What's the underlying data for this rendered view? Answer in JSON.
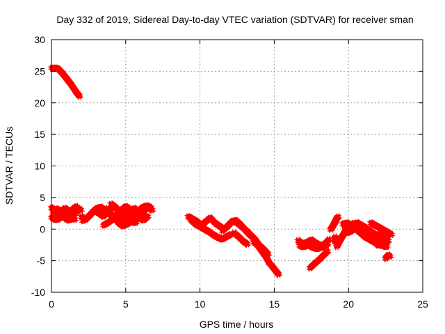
{
  "chart_data": {
    "type": "scatter",
    "title": "Day 332 of 2019, Sidereal Day-to-day VTEC variation (SDTVAR) for receiver sman",
    "xlabel": "GPS time / hours",
    "ylabel": "SDTVAR / TECUs",
    "xlim": [
      0,
      25
    ],
    "ylim": [
      -10,
      30
    ],
    "xticks": [
      0,
      5,
      10,
      15,
      20,
      25
    ],
    "yticks": [
      -10,
      -5,
      0,
      5,
      10,
      15,
      20,
      25,
      30
    ],
    "grid": true,
    "marker": "plus",
    "series_color": "#ff0000",
    "series": [
      {
        "name": "SDTVAR",
        "tracks": [
          [
            [
              0.0,
              25.5
            ],
            [
              0.3,
              25.5
            ],
            [
              0.5,
              25.3
            ],
            [
              0.7,
              24.8
            ],
            [
              0.9,
              24.2
            ],
            [
              1.1,
              23.6
            ],
            [
              1.3,
              23.0
            ],
            [
              1.5,
              22.3
            ],
            [
              1.7,
              21.6
            ],
            [
              1.9,
              21.0
            ]
          ],
          [
            [
              0.0,
              3.4
            ],
            [
              0.2,
              3.0
            ],
            [
              0.4,
              2.6
            ],
            [
              0.6,
              2.2
            ],
            [
              0.8,
              2.5
            ],
            [
              1.0,
              3.0
            ],
            [
              1.2,
              2.6
            ],
            [
              1.4,
              2.0
            ],
            [
              1.6,
              2.5
            ],
            [
              1.8,
              3.2
            ],
            [
              2.0,
              3.0
            ]
          ],
          [
            [
              0.0,
              1.9
            ],
            [
              0.2,
              1.6
            ],
            [
              0.4,
              1.5
            ],
            [
              0.6,
              1.8
            ],
            [
              0.8,
              2.0
            ],
            [
              1.0,
              1.6
            ],
            [
              1.2,
              1.4
            ],
            [
              1.4,
              1.8
            ],
            [
              1.6,
              1.5
            ]
          ],
          [
            [
              0.1,
              2.8
            ],
            [
              0.3,
              3.2
            ],
            [
              0.5,
              3.0
            ],
            [
              0.7,
              2.8
            ],
            [
              0.9,
              3.3
            ],
            [
              1.1,
              3.0
            ],
            [
              1.3,
              2.7
            ],
            [
              1.5,
              3.3
            ],
            [
              1.7,
              3.6
            ]
          ],
          [
            [
              2.0,
              2.0
            ],
            [
              2.3,
              1.5
            ],
            [
              2.6,
              2.2
            ],
            [
              2.9,
              3.0
            ],
            [
              3.2,
              2.5
            ],
            [
              3.5,
              2.0
            ],
            [
              3.8,
              2.8
            ],
            [
              4.1,
              3.6
            ],
            [
              4.4,
              3.2
            ],
            [
              4.7,
              2.5
            ],
            [
              5.0,
              2.2
            ],
            [
              5.3,
              2.8
            ],
            [
              5.6,
              3.3
            ],
            [
              5.9,
              2.6
            ],
            [
              6.2,
              2.9
            ],
            [
              6.5,
              3.4
            ],
            [
              6.8,
              3.0
            ]
          ],
          [
            [
              2.1,
              1.3
            ],
            [
              2.4,
              1.8
            ],
            [
              2.7,
              2.5
            ],
            [
              3.0,
              3.2
            ],
            [
              3.3,
              3.5
            ],
            [
              3.6,
              3.0
            ],
            [
              3.9,
              2.4
            ],
            [
              4.2,
              1.8
            ],
            [
              4.5,
              1.2
            ],
            [
              4.8,
              1.6
            ],
            [
              5.1,
              2.3
            ],
            [
              5.4,
              1.9
            ],
            [
              5.7,
              1.4
            ],
            [
              6.0,
              2.1
            ],
            [
              6.3,
              2.6
            ]
          ],
          [
            [
              3.5,
              0.6
            ],
            [
              3.8,
              1.0
            ],
            [
              4.1,
              1.5
            ],
            [
              4.4,
              2.2
            ],
            [
              4.7,
              3.0
            ],
            [
              5.0,
              3.6
            ],
            [
              5.3,
              3.1
            ],
            [
              5.6,
              2.5
            ],
            [
              5.9,
              1.8
            ],
            [
              6.2,
              1.4
            ],
            [
              6.5,
              2.0
            ]
          ],
          [
            [
              3.6,
              3.3
            ],
            [
              3.9,
              2.6
            ],
            [
              4.2,
              2.0
            ],
            [
              4.5,
              1.0
            ],
            [
              4.8,
              0.5
            ],
            [
              5.1,
              0.8
            ],
            [
              5.4,
              1.2
            ],
            [
              5.7,
              1.0
            ]
          ],
          [
            [
              4.0,
              4.0
            ],
            [
              4.3,
              3.5
            ],
            [
              4.6,
              2.8
            ],
            [
              4.9,
              2.0
            ],
            [
              5.2,
              1.5
            ],
            [
              5.5,
              2.0
            ],
            [
              5.8,
              2.7
            ],
            [
              6.1,
              3.4
            ],
            [
              6.4,
              3.7
            ],
            [
              6.7,
              3.4
            ]
          ],
          [
            [
              9.2,
              2.0
            ],
            [
              9.5,
              1.6
            ],
            [
              9.8,
              1.2
            ],
            [
              10.1,
              0.6
            ],
            [
              10.4,
              1.2
            ],
            [
              10.7,
              1.8
            ],
            [
              11.0,
              1.0
            ],
            [
              11.3,
              0.5
            ],
            [
              11.6,
              0.0
            ],
            [
              11.9,
              0.5
            ],
            [
              12.2,
              1.3
            ],
            [
              12.5,
              1.0
            ],
            [
              12.8,
              0.4
            ],
            [
              13.1,
              -0.2
            ],
            [
              13.4,
              -0.9
            ],
            [
              13.7,
              -1.6
            ],
            [
              14.0,
              -2.6
            ],
            [
              14.3,
              -3.2
            ],
            [
              14.6,
              -4.0
            ]
          ],
          [
            [
              9.4,
              1.4
            ],
            [
              9.7,
              0.8
            ],
            [
              10.0,
              0.4
            ],
            [
              10.3,
              0.0
            ],
            [
              10.6,
              -0.4
            ],
            [
              10.9,
              -0.9
            ],
            [
              11.2,
              -1.3
            ],
            [
              11.5,
              -1.6
            ],
            [
              11.8,
              -1.2
            ],
            [
              12.1,
              -0.8
            ]
          ],
          [
            [
              11.5,
              -0.3
            ],
            [
              11.8,
              0.3
            ],
            [
              12.1,
              1.1
            ],
            [
              12.4,
              1.4
            ],
            [
              12.7,
              0.8
            ],
            [
              13.0,
              0.0
            ],
            [
              13.3,
              -0.8
            ],
            [
              13.6,
              -1.4
            ]
          ],
          [
            [
              12.3,
              -0.6
            ],
            [
              12.6,
              -1.2
            ],
            [
              12.9,
              -1.9
            ],
            [
              13.2,
              -2.4
            ]
          ],
          [
            [
              13.6,
              -2.0
            ],
            [
              13.9,
              -2.6
            ],
            [
              14.2,
              -3.6
            ],
            [
              14.5,
              -4.6
            ],
            [
              14.7,
              -5.5
            ]
          ],
          [
            [
              14.8,
              -5.7
            ],
            [
              15.0,
              -6.3
            ],
            [
              15.2,
              -6.9
            ],
            [
              15.3,
              -7.2
            ]
          ],
          [
            [
              16.6,
              -1.8
            ],
            [
              16.9,
              -2.3
            ],
            [
              17.2,
              -2.1
            ],
            [
              17.5,
              -1.7
            ],
            [
              17.8,
              -2.2
            ],
            [
              18.1,
              -2.6
            ],
            [
              18.4,
              -2.4
            ],
            [
              18.7,
              -1.6
            ]
          ],
          [
            [
              16.7,
              -2.6
            ],
            [
              17.0,
              -2.8
            ],
            [
              17.3,
              -2.5
            ],
            [
              17.6,
              -2.9
            ],
            [
              17.9,
              -3.1
            ],
            [
              18.2,
              -2.9
            ],
            [
              18.5,
              -2.4
            ]
          ],
          [
            [
              17.4,
              -6.2
            ],
            [
              17.7,
              -5.5
            ],
            [
              18.0,
              -4.9
            ],
            [
              18.3,
              -4.2
            ],
            [
              18.6,
              -3.5
            ]
          ],
          [
            [
              18.4,
              -2.8
            ],
            [
              18.6,
              -2.3
            ]
          ],
          [
            [
              18.8,
              -0.1
            ],
            [
              19.0,
              0.7
            ],
            [
              19.2,
              1.6
            ],
            [
              19.3,
              2.0
            ]
          ],
          [
            [
              19.6,
              0.8
            ],
            [
              19.9,
              1.0
            ],
            [
              20.2,
              0.5
            ],
            [
              20.5,
              0.0
            ],
            [
              20.8,
              -0.6
            ],
            [
              21.1,
              -1.2
            ],
            [
              21.4,
              -1.6
            ],
            [
              21.7,
              -2.0
            ],
            [
              22.0,
              -2.4
            ],
            [
              22.3,
              -2.6
            ],
            [
              22.6,
              -2.8
            ]
          ],
          [
            [
              19.9,
              -0.6
            ],
            [
              20.2,
              -0.3
            ],
            [
              20.5,
              0.3
            ],
            [
              20.8,
              0.7
            ],
            [
              21.1,
              0.3
            ],
            [
              21.4,
              -0.2
            ],
            [
              21.7,
              -0.7
            ],
            [
              22.0,
              -1.2
            ],
            [
              22.3,
              -1.7
            ],
            [
              22.6,
              -2.2
            ]
          ],
          [
            [
              20.0,
              0.3
            ],
            [
              20.3,
              0.8
            ],
            [
              20.6,
              1.0
            ],
            [
              20.9,
              0.5
            ],
            [
              21.2,
              0.0
            ],
            [
              21.5,
              -0.5
            ],
            [
              21.8,
              -0.9
            ],
            [
              22.1,
              -0.9
            ],
            [
              22.4,
              -1.5
            ],
            [
              22.7,
              -1.9
            ]
          ],
          [
            [
              21.5,
              1.0
            ],
            [
              21.8,
              0.6
            ],
            [
              22.1,
              0.2
            ],
            [
              22.4,
              -0.2
            ],
            [
              22.7,
              -0.6
            ],
            [
              22.9,
              -0.9
            ]
          ],
          [
            [
              20.6,
              0.0
            ],
            [
              20.9,
              -0.6
            ],
            [
              21.2,
              -1.1
            ],
            [
              21.5,
              -1.5
            ],
            [
              21.8,
              -2.1
            ],
            [
              22.0,
              -2.6
            ]
          ],
          [
            [
              19.2,
              -2.8
            ],
            [
              19.4,
              -1.9
            ],
            [
              19.6,
              -1.1
            ],
            [
              19.8,
              -0.3
            ],
            [
              20.0,
              0.4
            ],
            [
              20.2,
              0.9
            ]
          ],
          [
            [
              22.5,
              -4.7
            ],
            [
              22.6,
              -4.3
            ],
            [
              22.7,
              -4.1
            ],
            [
              22.8,
              -4.4
            ]
          ],
          [
            [
              19.8,
              0.5
            ],
            [
              19.8,
              -0.5
            ]
          ],
          [
            [
              19.1,
              -1.2
            ],
            [
              19.1,
              -2.1
            ]
          ]
        ]
      }
    ]
  }
}
